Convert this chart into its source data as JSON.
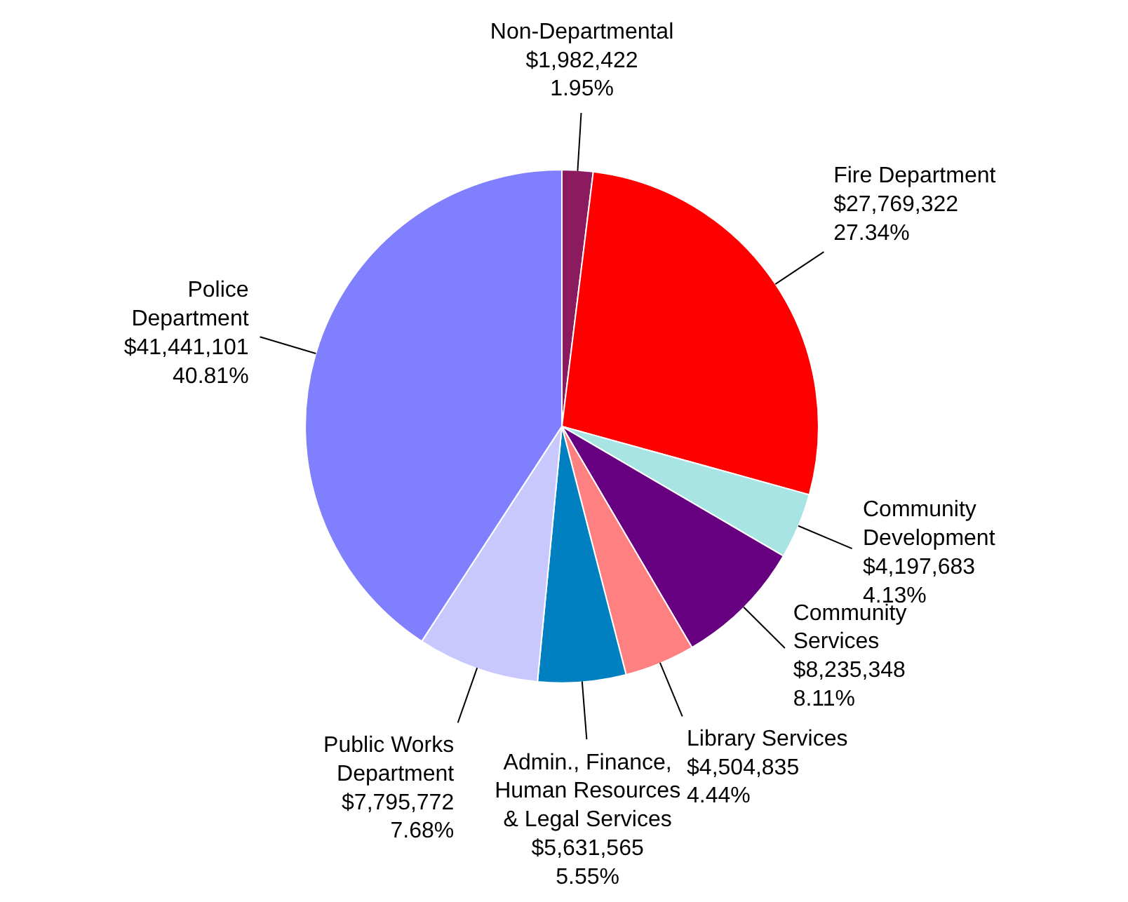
{
  "chart_data": {
    "type": "pie",
    "categories": [
      "Non-Departmental",
      "Fire Department",
      "Community Development",
      "Community Services",
      "Library Services",
      "Admin., Finance, Human Resources & Legal Services",
      "Public Works Department",
      "Police Department"
    ],
    "values": [
      1982422,
      27769322,
      4197683,
      8235348,
      4504835,
      5631565,
      7795772,
      41441101
    ],
    "colors": [
      "#8b1a5e",
      "#ff0000",
      "#a8e4e4",
      "#660080",
      "#ff8080",
      "#0080c0",
      "#c8c8ff",
      "#8080ff"
    ],
    "value_labels": [
      "$1,982,422\n1.95%",
      "$27,769,322\n27.34%",
      "$4,197,683\n4.13%",
      "$8,235,348\n8.11%",
      "$4,504,835\n4.44%",
      "$5,631,565\n5.55%",
      "$7,795,772\n7.68%",
      "$41,441,101\n40.81%"
    ]
  }
}
